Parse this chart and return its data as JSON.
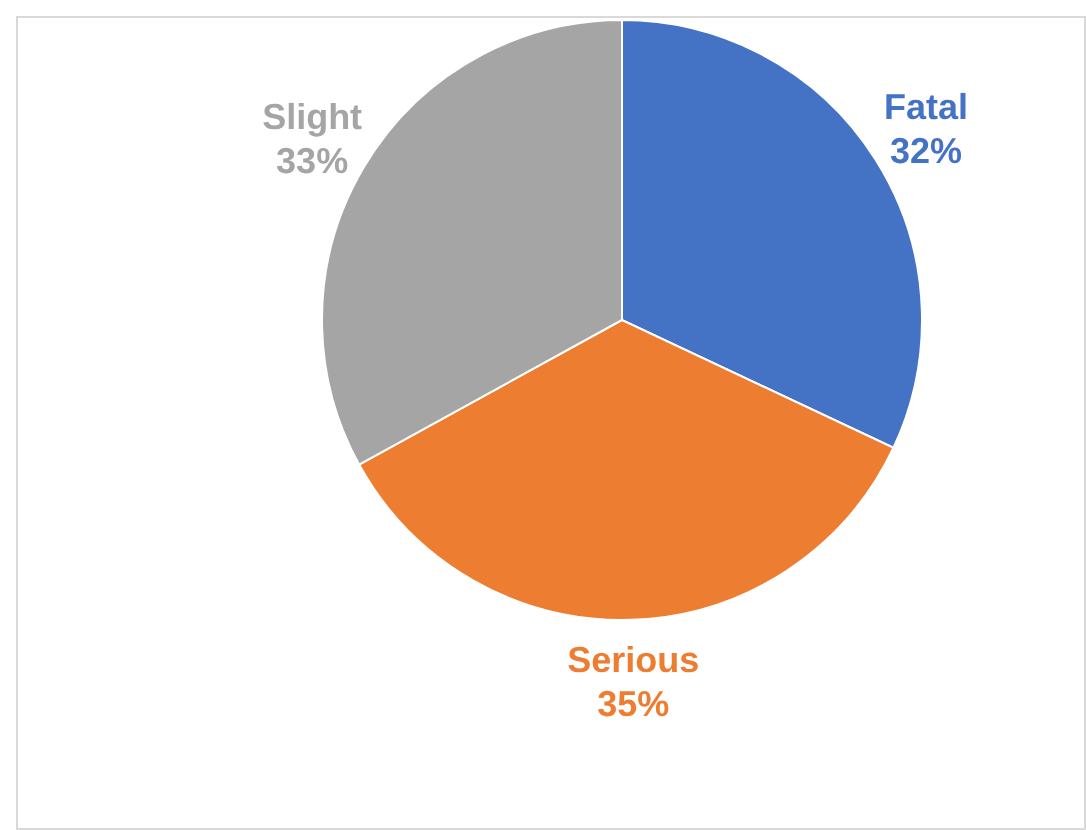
{
  "chart_data": {
    "type": "pie",
    "categories": [
      "Fatal",
      "Serious",
      "Slight"
    ],
    "values": [
      32,
      35,
      33
    ],
    "colors": [
      "#4472c4",
      "#ed7d31",
      "#a5a5a5"
    ],
    "value_labels": [
      "32%",
      "35%",
      "33%"
    ]
  }
}
